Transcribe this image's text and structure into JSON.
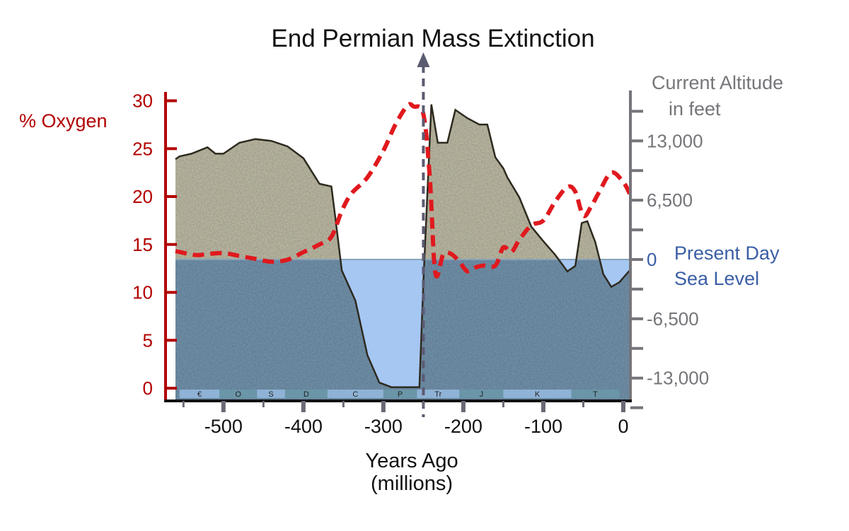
{
  "colors": {
    "oxygen": "#e0191e",
    "oxygen_axis": "#b30000",
    "altitude_axis": "#75757a",
    "sea_label": "#3a5ea6",
    "land_fill": "#b8b6a0",
    "sea_fill": "#6f8fa8",
    "sea_open": "#a6c7f2",
    "extinction_line": "#5b5b72",
    "land_outline": "#2e2a1f",
    "period_bar": "#8fb3d6",
    "period_bar_alt": "#6a96a8"
  },
  "chart_data": {
    "type": "line",
    "title": "End Permian Mass Extinction",
    "xlabel": "Years Ago",
    "xlabel_units": "(millions)",
    "xlim": [
      -570,
      10
    ],
    "x_ticks": [
      -500,
      -400,
      -300,
      -200,
      -100,
      0
    ],
    "left_axis": {
      "label": "% Oxygen",
      "ylim": [
        0,
        30
      ],
      "ticks": [
        0,
        5,
        10,
        15,
        20,
        25,
        30
      ]
    },
    "right_axis": {
      "label_line1": "Current Altitude",
      "label_line2": "in feet",
      "ticks": [
        13000,
        6500,
        0,
        -6500,
        -13000
      ],
      "tick_labels": [
        "13,000",
        "6,500",
        "0",
        "-6,500",
        "-13,000"
      ]
    },
    "sea_level_label": [
      "Present Day",
      "Sea Level"
    ],
    "extinction_marker_x": -250,
    "series": [
      {
        "name": "% Oxygen",
        "axis": "left",
        "style": "dashed",
        "x": [
          -560,
          -535,
          -520,
          -500,
          -480,
          -460,
          -440,
          -420,
          -400,
          -380,
          -365,
          -352,
          -340,
          -320,
          -300,
          -285,
          -270,
          -262,
          -250,
          -242,
          -235,
          -225,
          -215,
          -205,
          -195,
          -185,
          -175,
          -160,
          -150,
          -140,
          -130,
          -115,
          -100,
          -85,
          -70,
          -60,
          -50,
          -40,
          -30,
          -15,
          0,
          8
        ],
        "y": [
          14.3,
          13.9,
          14.0,
          14.1,
          13.8,
          13.5,
          13.2,
          13.4,
          14.2,
          15.0,
          15.8,
          18.5,
          20.3,
          22.0,
          24.8,
          27.5,
          29.5,
          29.4,
          28.6,
          22.0,
          12.0,
          14.0,
          14.0,
          13.2,
          12.2,
          12.6,
          12.8,
          12.8,
          14.7,
          14.2,
          15.5,
          17.0,
          17.5,
          19.5,
          21.0,
          20.5,
          18.0,
          19.0,
          20.5,
          22.5,
          21.5,
          20.3
        ]
      },
      {
        "name": "Current Altitude",
        "axis": "right",
        "style": "area",
        "x": [
          -560,
          -555,
          -540,
          -520,
          -510,
          -500,
          -480,
          -460,
          -440,
          -420,
          -400,
          -380,
          -365,
          -360,
          -352,
          -335,
          -320,
          -305,
          -290,
          -275,
          -255,
          -250,
          -240,
          -232,
          -220,
          -210,
          -195,
          -180,
          -170,
          -160,
          -150,
          -145,
          -130,
          -115,
          -100,
          -85,
          -70,
          -60,
          -52,
          -45,
          -35,
          -25,
          -15,
          -5,
          10
        ],
        "y": [
          11000,
          11300,
          11600,
          12300,
          11600,
          11600,
          12800,
          13200,
          13000,
          12400,
          11100,
          8300,
          8000,
          4500,
          -1200,
          -4500,
          -10500,
          -13500,
          -14000,
          -14000,
          -14000,
          -2500,
          17000,
          12800,
          12800,
          16400,
          15500,
          14800,
          14800,
          11200,
          10000,
          9000,
          6800,
          3600,
          2000,
          500,
          -1300,
          -700,
          4000,
          4200,
          1900,
          -1600,
          -3000,
          -2500,
          -1000
        ]
      }
    ],
    "periods": [
      "€",
      "O",
      "S",
      "D",
      "C",
      "P",
      "Tr",
      "J",
      "K",
      "T"
    ]
  }
}
